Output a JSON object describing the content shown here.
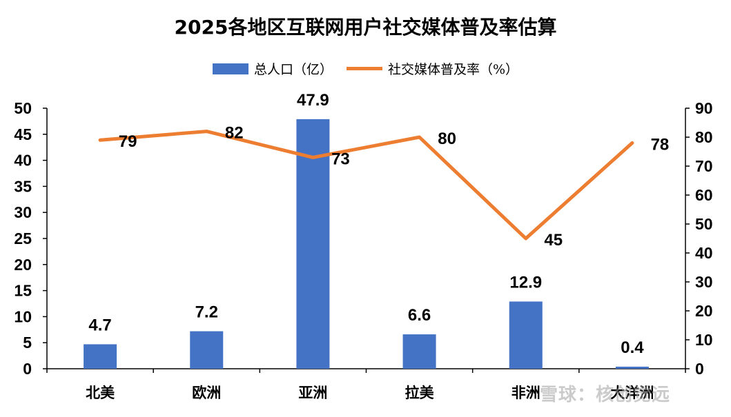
{
  "watermark": "雪球：核创觉远",
  "chart_data": {
    "type": "bar+line",
    "title": "2025各地区互联网用户社交媒体普及率估算",
    "categories": [
      "北美",
      "欧洲",
      "亚洲",
      "拉美",
      "非洲",
      "大洋洲"
    ],
    "series": [
      {
        "name": "总人口（亿）",
        "type": "bar",
        "axis": "left",
        "color": "#4472C4",
        "values": [
          4.7,
          7.2,
          47.9,
          6.6,
          12.9,
          0.4
        ]
      },
      {
        "name": "社交媒体普及率（%）",
        "type": "line",
        "axis": "right",
        "color": "#ED7D31",
        "values": [
          79,
          82,
          73,
          80,
          45,
          78
        ]
      }
    ],
    "y_left": {
      "min": 0,
      "max": 50,
      "step": 5
    },
    "y_right": {
      "min": 0,
      "max": 90,
      "step": 10
    },
    "legend_position": "top",
    "grid": false
  }
}
